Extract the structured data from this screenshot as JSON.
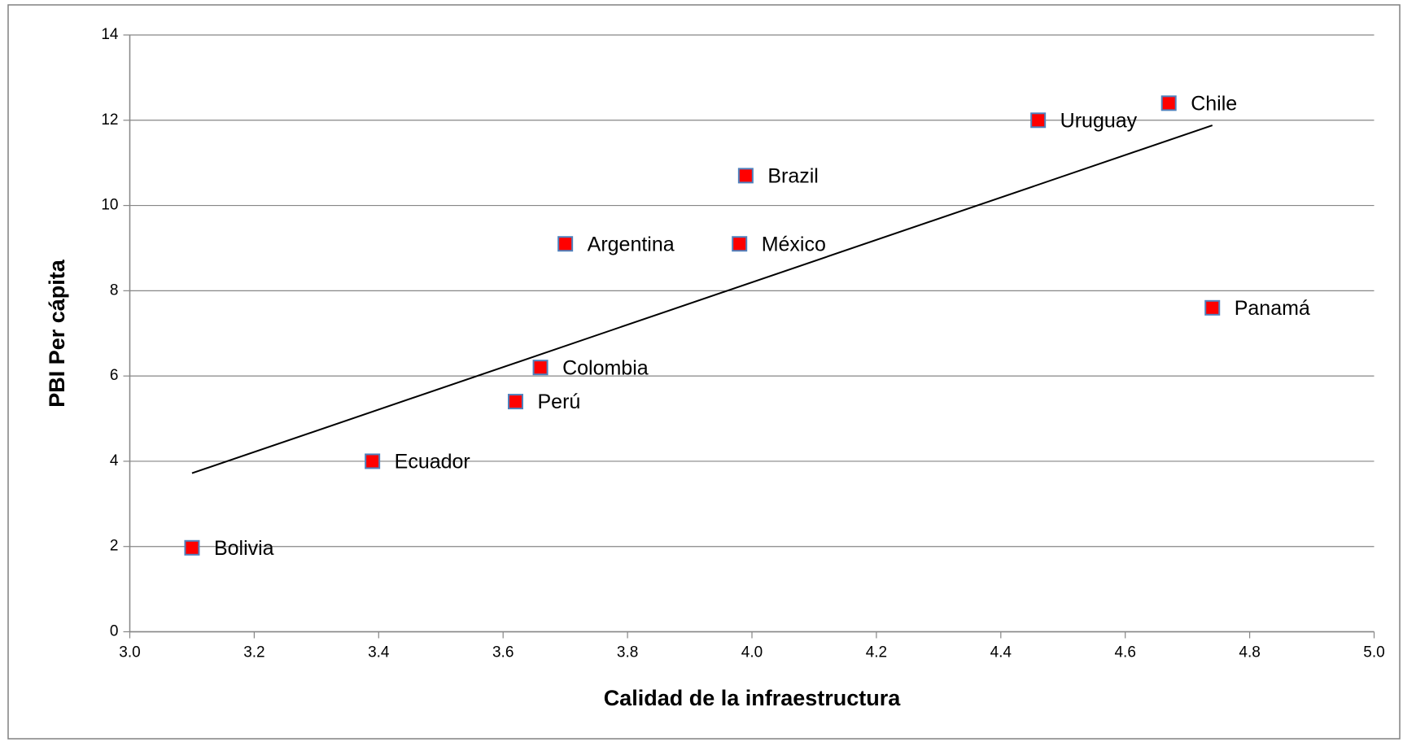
{
  "chart_data": {
    "type": "scatter",
    "x_label": "Calidad de la infraestructura",
    "y_label": "PBI Per cápita",
    "labels": [
      "Bolivia",
      "Ecuador",
      "Perú",
      "Colombia",
      "Argentina",
      "México",
      "Brazil",
      "Uruguay",
      "Chile",
      "Panamá"
    ],
    "x": [
      3.1,
      3.39,
      3.62,
      3.66,
      3.7,
      3.98,
      3.99,
      4.46,
      4.67,
      4.74
    ],
    "values": [
      1.97,
      4.0,
      5.4,
      6.2,
      9.1,
      9.1,
      10.7,
      12.0,
      12.4,
      7.6
    ],
    "color": "#ff0000",
    "edge_color": "#4f81bd",
    "trendline": {
      "x": [
        3.1,
        4.74
      ],
      "y": [
        3.72,
        11.88
      ],
      "color": "#000000"
    },
    "xlim": [
      3,
      5
    ],
    "ylim": [
      0,
      14
    ],
    "xticks": [
      {
        "value": 3,
        "label": "3.0"
      },
      3.2,
      3.4,
      3.6,
      3.8,
      {
        "value": 4,
        "label": "4.0"
      },
      4.2,
      4.4,
      4.6,
      4.8,
      {
        "value": 5,
        "label": "5.0"
      }
    ],
    "yticks": [
      0,
      2,
      4,
      6,
      8,
      10,
      12,
      14
    ],
    "grid": true
  }
}
